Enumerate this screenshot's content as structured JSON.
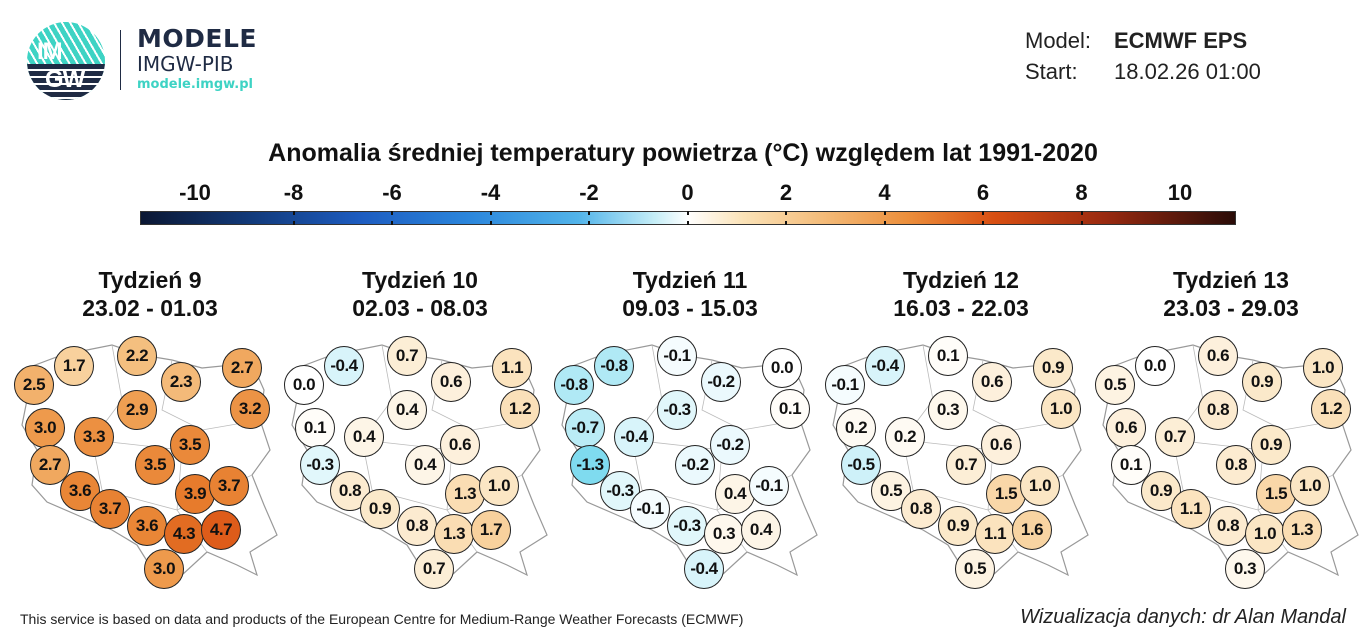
{
  "logo": {
    "mark_text_top": "IM",
    "mark_text_bottom": "GW",
    "name": "MODELE",
    "org": "IMGW-PIB",
    "url": "modele.imgw.pl"
  },
  "meta": {
    "model_label": "Model:",
    "model_value": "ECMWF EPS",
    "start_label": "Start:",
    "start_value": "18.02.26 01:00"
  },
  "title": "Anomalia średniej temperatury powietrza (°C) względem lat 1991-2020",
  "colorbar": {
    "labels": [
      "-10",
      "-8",
      "-6",
      "-4",
      "-2",
      "0",
      "2",
      "4",
      "6",
      "8",
      "10"
    ],
    "range": [
      -10,
      10
    ],
    "colors": {
      "-10": "#0b1733",
      "-4": "#2b86dc",
      "0": "#ffffff",
      "4": "#ec8f3c",
      "10": "#2a0c08"
    }
  },
  "weeks": [
    {
      "title": "Tydzień 9",
      "dates": "23.02 - 01.03",
      "values": [
        "1.7",
        "2.2",
        "2.7",
        "2.5",
        "2.3",
        "2.9",
        "3.2",
        "3.0",
        "3.3",
        "3.5",
        "3.5",
        "2.7",
        "3.6",
        "3.9",
        "3.7",
        "3.7",
        "3.6",
        "4.3",
        "4.7",
        "3.0"
      ]
    },
    {
      "title": "Tydzień 10",
      "dates": "02.03 - 08.03",
      "values": [
        "-0.4",
        "0.7",
        "1.1",
        "0.0",
        "0.6",
        "0.4",
        "1.2",
        "0.1",
        "0.4",
        "0.6",
        "0.4",
        "-0.3",
        "0.8",
        "1.3",
        "1.0",
        "0.9",
        "0.8",
        "1.3",
        "1.7",
        "0.7"
      ]
    },
    {
      "title": "Tydzień 11",
      "dates": "09.03 - 15.03",
      "values": [
        "-0.8",
        "-0.1",
        "0.0",
        "-0.8",
        "-0.2",
        "-0.3",
        "0.1",
        "-0.7",
        "-0.4",
        "-0.2",
        "-0.2",
        "-1.3",
        "-0.3",
        "0.4",
        "-0.1",
        "-0.1",
        "-0.3",
        "0.3",
        "0.4",
        "-0.4"
      ]
    },
    {
      "title": "Tydzień 12",
      "dates": "16.03 - 22.03",
      "values": [
        "-0.4",
        "0.1",
        "0.9",
        "-0.1",
        "0.6",
        "0.3",
        "1.0",
        "0.2",
        "0.2",
        "0.6",
        "0.7",
        "-0.5",
        "0.5",
        "1.5",
        "1.0",
        "0.8",
        "0.9",
        "1.1",
        "1.6",
        "0.5"
      ]
    },
    {
      "title": "Tydzień 13",
      "dates": "23.03 - 29.03",
      "values": [
        "0.0",
        "0.6",
        "1.0",
        "0.5",
        "0.9",
        "0.8",
        "1.2",
        "0.6",
        "0.7",
        "0.9",
        "0.8",
        "0.1",
        "0.9",
        "1.5",
        "1.0",
        "1.1",
        "0.8",
        "1.0",
        "1.3",
        "0.3"
      ]
    }
  ],
  "footer": {
    "source": "This service is based on data and products of the European Centre for Medium-Range Weather Forecasts (ECMWF)",
    "credit": "Wizualizacja danych: dr Alan Mandal"
  }
}
